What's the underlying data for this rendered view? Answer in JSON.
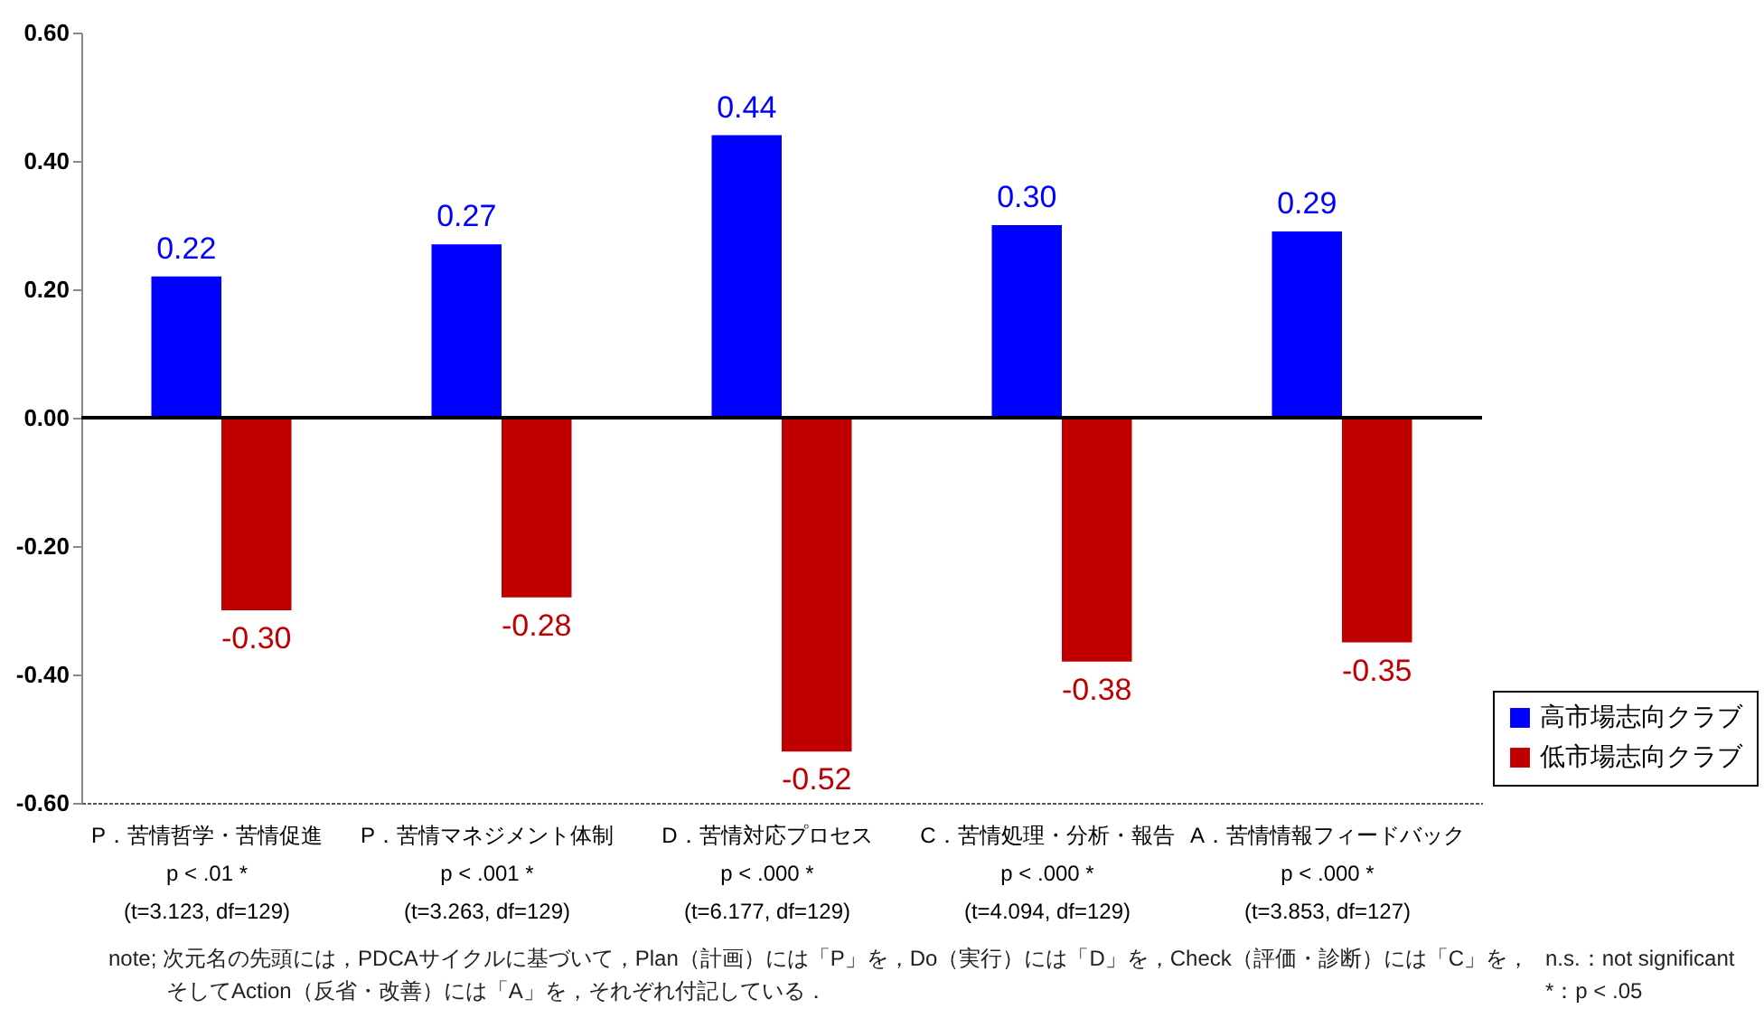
{
  "chart_data": {
    "type": "bar",
    "categories": [
      "P．苦情哲学・苦情促進\np < .01 *\n(t=3.123, df=129)",
      "P．苦情マネジメント体制\np < .001 *\n(t=3.263, df=129)",
      "D．苦情対応プロセス\np < .000 *\n(t=6.177, df=129)",
      "C．苦情処理・分析・報告\np < .000 *\n(t=4.094, df=129)",
      "A．苦情情報フィードバック\np < .000 *\n(t=3.853, df=127)"
    ],
    "series": [
      {
        "name": "高市場志向クラブ",
        "color": "#0000ff",
        "values": [
          0.22,
          0.27,
          0.44,
          0.3,
          0.29
        ],
        "value_labels": [
          "0.22",
          "0.27",
          "0.44",
          "0.30",
          "0.29"
        ]
      },
      {
        "name": "低市場志向クラブ",
        "color": "#c00000",
        "values": [
          -0.3,
          -0.28,
          -0.52,
          -0.38,
          -0.35
        ],
        "value_labels": [
          "-0.30",
          "-0.28",
          "-0.52",
          "-0.38",
          "-0.35"
        ]
      }
    ],
    "ylim": [
      -0.6,
      0.6
    ],
    "yticks": [
      {
        "value": -0.6,
        "label": "-0.60"
      },
      {
        "value": -0.4,
        "label": "-0.40"
      },
      {
        "value": -0.2,
        "label": "-0.20"
      },
      {
        "value": 0,
        "label": "0.00"
      },
      {
        "value": 0.2,
        "label": "0.20"
      },
      {
        "value": 0.4,
        "label": "0.40"
      },
      {
        "value": 0.6,
        "label": "0.60"
      }
    ],
    "ref_lines": [
      {
        "axis": "y",
        "value": 0,
        "color": "#000000"
      }
    ],
    "grid": false,
    "legend": "right",
    "annotations": [
      "note; 次元名の先頭には，PDCAサイクルに基づいて，Plan（計画）には「P」を，Do（実行）には「D」を，Check（評価・診断）には「C」を，",
      "そしてAction（反省・改善）には「A」を，それぞれ付記している．",
      "n.s.：not significant",
      "*：p < .05"
    ]
  }
}
